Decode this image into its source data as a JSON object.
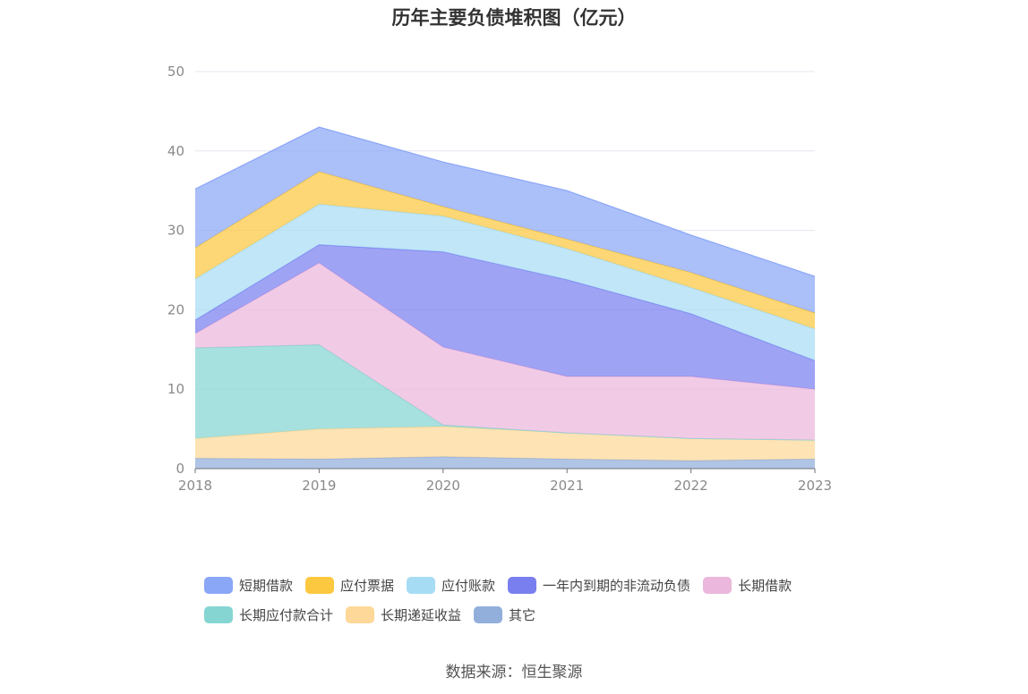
{
  "chart_data": {
    "type": "area",
    "title": "历年主要负债堆积图（亿元）",
    "x": [
      "2018",
      "2019",
      "2020",
      "2021",
      "2022",
      "2023"
    ],
    "ylim": [
      0,
      50
    ],
    "yticks": [
      0,
      10,
      20,
      30,
      40,
      50
    ],
    "stacked": true,
    "grid": true,
    "legend_position": "bottom",
    "series": [
      {
        "name": "短期借款",
        "color": "#8aa6f7",
        "values": [
          7.4,
          5.6,
          5.6,
          6.1,
          4.7,
          4.6
        ]
      },
      {
        "name": "应付票据",
        "color": "#fcc840",
        "values": [
          3.9,
          4.1,
          1.2,
          1.2,
          1.9,
          2.0
        ]
      },
      {
        "name": "应付账款",
        "color": "#a7dcf5",
        "values": [
          5.2,
          5.1,
          4.5,
          3.9,
          3.3,
          4.0
        ]
      },
      {
        "name": "一年内到期的非流动负债",
        "color": "#7a7ff0",
        "values": [
          1.7,
          2.3,
          12.0,
          12.2,
          7.9,
          3.6
        ]
      },
      {
        "name": "长期借款",
        "color": "#ebb7dc",
        "values": [
          1.8,
          10.3,
          9.8,
          7.1,
          7.8,
          6.4
        ]
      },
      {
        "name": "长期应付款合计",
        "color": "#85d6d2",
        "values": [
          11.4,
          10.6,
          0.2,
          0.0,
          0.0,
          0.0
        ]
      },
      {
        "name": "长期递延收益",
        "color": "#fdd898",
        "values": [
          2.5,
          3.8,
          3.8,
          3.3,
          2.8,
          2.4
        ]
      },
      {
        "name": "其它",
        "color": "#92aedb",
        "values": [
          1.3,
          1.2,
          1.5,
          1.2,
          1.0,
          1.2
        ]
      }
    ]
  },
  "source": "数据来源：恒生聚源"
}
